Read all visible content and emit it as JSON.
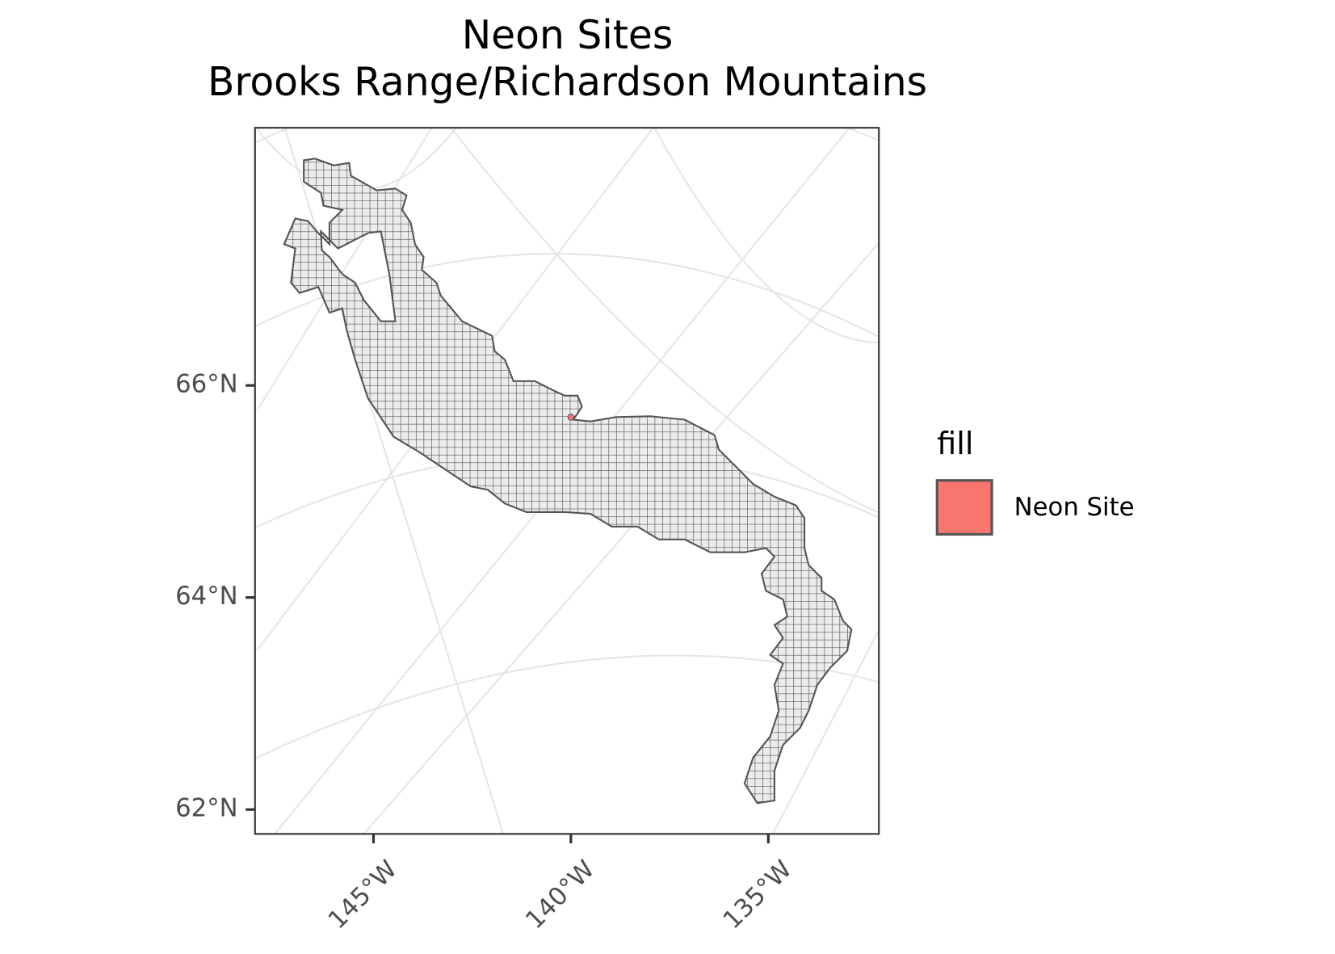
{
  "chart_data": {
    "type": "map",
    "title": "Neon Sites",
    "subtitle": "Brooks Range/Richardson Mountains",
    "xlim": [
      -148,
      -132.2
    ],
    "ylim": [
      61.77,
      68.43
    ],
    "xticks": [
      {
        "value": -145,
        "label": "145°W"
      },
      {
        "value": -140,
        "label": "140°W"
      },
      {
        "value": -135,
        "label": "135°W"
      }
    ],
    "yticks": [
      {
        "value": 62,
        "label": "62°N"
      },
      {
        "value": 64,
        "label": "64°N"
      },
      {
        "value": 66,
        "label": "66°N"
      }
    ],
    "legend_title": "fill",
    "legend": "right",
    "series": [
      {
        "name": "Neon Site",
        "color": "#F8766D",
        "x": [
          -140
        ],
        "values": [
          65.7
        ]
      }
    ]
  }
}
